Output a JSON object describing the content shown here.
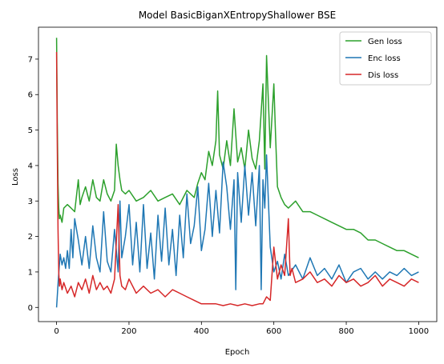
{
  "chart_data": {
    "type": "line",
    "title": "Model BasicBiganXEntropyShallower BSE",
    "xlabel": "Epoch",
    "ylabel": "Loss",
    "xlim": [
      -50,
      1050
    ],
    "ylim": [
      -0.4,
      7.9
    ],
    "xticks": [
      0,
      200,
      400,
      600,
      800,
      1000
    ],
    "xtick_labels": [
      "0",
      "200",
      "400",
      "600",
      "800",
      "1000"
    ],
    "yticks": [
      0,
      1,
      2,
      3,
      4,
      5,
      6,
      7
    ],
    "ytick_labels": [
      "0",
      "1",
      "2",
      "3",
      "4",
      "5",
      "6",
      "7"
    ],
    "grid": false,
    "legend_position": "top-right",
    "series": [
      {
        "name": "Gen loss",
        "color": "#2ca02c",
        "x": [
          0,
          2,
          4,
          6,
          8,
          10,
          15,
          20,
          30,
          40,
          50,
          60,
          65,
          70,
          80,
          90,
          100,
          110,
          120,
          130,
          140,
          150,
          160,
          165,
          170,
          175,
          180,
          190,
          200,
          220,
          240,
          260,
          280,
          300,
          320,
          340,
          360,
          380,
          390,
          400,
          410,
          420,
          430,
          440,
          445,
          450,
          460,
          470,
          480,
          490,
          500,
          510,
          520,
          530,
          540,
          550,
          560,
          570,
          575,
          580,
          590,
          600,
          605,
          610,
          620,
          630,
          640,
          660,
          680,
          700,
          720,
          740,
          760,
          780,
          800,
          820,
          840,
          860,
          880,
          900,
          920,
          940,
          960,
          980,
          1000
        ],
        "y": [
          7.6,
          5.2,
          3.5,
          2.8,
          2.5,
          2.6,
          2.4,
          2.8,
          2.9,
          2.8,
          2.7,
          3.6,
          2.9,
          3.1,
          3.4,
          3.0,
          3.6,
          3.1,
          3.0,
          3.6,
          3.2,
          3.0,
          3.3,
          4.6,
          4.0,
          3.6,
          3.3,
          3.2,
          3.3,
          3.0,
          3.1,
          3.3,
          3.0,
          3.1,
          3.2,
          2.9,
          3.3,
          3.1,
          3.5,
          3.8,
          3.6,
          4.4,
          4.0,
          4.7,
          6.1,
          4.3,
          3.9,
          4.7,
          4.0,
          5.6,
          4.1,
          4.5,
          3.9,
          5.0,
          4.2,
          3.9,
          4.7,
          6.3,
          3.9,
          7.1,
          4.5,
          6.3,
          4.8,
          3.4,
          3.1,
          2.9,
          2.8,
          3.0,
          2.7,
          2.7,
          2.6,
          2.5,
          2.4,
          2.3,
          2.2,
          2.2,
          2.1,
          1.9,
          1.9,
          1.8,
          1.7,
          1.6,
          1.6,
          1.5,
          1.4
        ]
      },
      {
        "name": "Enc loss",
        "color": "#1f77b4",
        "x": [
          0,
          5,
          10,
          15,
          20,
          25,
          30,
          35,
          40,
          45,
          50,
          60,
          70,
          80,
          90,
          100,
          110,
          120,
          130,
          140,
          150,
          160,
          170,
          175,
          180,
          190,
          200,
          210,
          220,
          230,
          240,
          250,
          260,
          270,
          280,
          290,
          300,
          310,
          320,
          330,
          340,
          350,
          360,
          370,
          380,
          390,
          400,
          410,
          420,
          430,
          440,
          450,
          460,
          470,
          480,
          490,
          495,
          500,
          510,
          520,
          530,
          540,
          550,
          560,
          565,
          570,
          575,
          580,
          590,
          600,
          610,
          620,
          630,
          640,
          660,
          680,
          700,
          720,
          740,
          760,
          780,
          800,
          820,
          840,
          860,
          880,
          900,
          920,
          940,
          960,
          980,
          1000
        ],
        "y": [
          0.0,
          0.8,
          1.5,
          1.2,
          1.4,
          1.1,
          1.6,
          1.1,
          2.2,
          1.4,
          2.5,
          1.9,
          1.2,
          2.0,
          1.1,
          2.3,
          1.4,
          1.0,
          2.7,
          1.3,
          1.0,
          2.2,
          1.0,
          3.0,
          1.4,
          2.0,
          2.9,
          1.2,
          2.4,
          1.0,
          2.9,
          1.1,
          2.1,
          0.8,
          2.6,
          1.3,
          2.8,
          1.2,
          2.2,
          0.9,
          2.6,
          1.4,
          3.2,
          1.8,
          2.3,
          3.4,
          1.6,
          2.2,
          3.5,
          2.0,
          3.3,
          2.1,
          4.1,
          3.4,
          2.2,
          3.6,
          0.5,
          3.8,
          2.4,
          4.0,
          2.6,
          3.8,
          2.3,
          4.0,
          0.5,
          3.6,
          2.8,
          4.3,
          1.7,
          1.0,
          1.3,
          0.8,
          1.5,
          0.9,
          1.2,
          0.8,
          1.4,
          0.9,
          1.1,
          0.8,
          1.2,
          0.7,
          1.0,
          1.1,
          0.8,
          1.0,
          0.8,
          1.0,
          0.9,
          1.1,
          0.9,
          1.0
        ]
      },
      {
        "name": "Dis loss",
        "color": "#d62728",
        "x": [
          0,
          2,
          4,
          6,
          8,
          10,
          15,
          20,
          30,
          40,
          50,
          60,
          70,
          80,
          90,
          100,
          110,
          120,
          130,
          140,
          150,
          160,
          170,
          175,
          180,
          190,
          200,
          220,
          240,
          260,
          280,
          300,
          320,
          340,
          360,
          380,
          400,
          420,
          440,
          460,
          480,
          500,
          520,
          540,
          560,
          570,
          580,
          590,
          600,
          610,
          620,
          630,
          640,
          645,
          650,
          660,
          680,
          700,
          720,
          740,
          760,
          780,
          800,
          820,
          840,
          860,
          880,
          900,
          920,
          940,
          960,
          980,
          1000
        ],
        "y": [
          7.2,
          4.5,
          2.2,
          1.0,
          0.6,
          0.8,
          0.5,
          0.7,
          0.4,
          0.6,
          0.3,
          0.7,
          0.5,
          0.8,
          0.4,
          0.9,
          0.5,
          0.7,
          0.5,
          0.6,
          0.4,
          0.8,
          2.9,
          0.9,
          0.6,
          0.5,
          0.8,
          0.4,
          0.6,
          0.4,
          0.5,
          0.3,
          0.5,
          0.4,
          0.3,
          0.2,
          0.1,
          0.1,
          0.1,
          0.05,
          0.1,
          0.05,
          0.1,
          0.05,
          0.1,
          0.1,
          0.3,
          0.2,
          1.7,
          0.8,
          1.2,
          0.9,
          2.5,
          0.9,
          1.1,
          0.7,
          0.8,
          1.0,
          0.7,
          0.8,
          0.6,
          0.9,
          0.7,
          0.8,
          0.6,
          0.7,
          0.9,
          0.6,
          0.8,
          0.7,
          0.6,
          0.8,
          0.7
        ]
      }
    ]
  }
}
